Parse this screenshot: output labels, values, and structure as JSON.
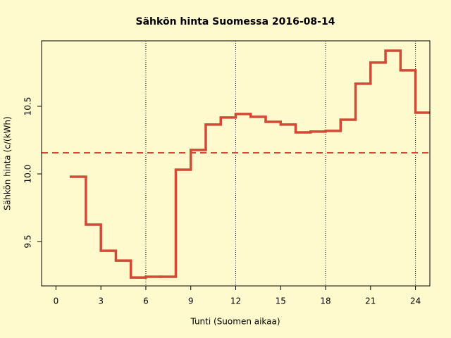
{
  "chart_data": {
    "type": "step",
    "title": "Sähkön hinta Suomessa 2016-08-14",
    "x_label": "Tunti (Suomen aikaa)",
    "y_label": "Sähkön hinta (c/(kWh)",
    "x": [
      1,
      2,
      3,
      4,
      5,
      6,
      7,
      8,
      9,
      10,
      11,
      12,
      13,
      14,
      15,
      16,
      17,
      18,
      19,
      20,
      21,
      22,
      23,
      24
    ],
    "series": [
      {
        "name": "Sähkön hinta",
        "color": "#d04a35",
        "values": [
          9.979,
          9.625,
          9.432,
          9.359,
          9.234,
          9.24,
          9.24,
          10.031,
          10.177,
          10.365,
          10.417,
          10.443,
          10.422,
          10.385,
          10.365,
          10.307,
          10.313,
          10.318,
          10.401,
          10.667,
          10.823,
          10.911,
          10.766,
          10.453
        ]
      }
    ],
    "mean_line": 10.156,
    "vlines": [
      6,
      12,
      18,
      24
    ],
    "xlim": [
      -0.96,
      24.96
    ],
    "ylim": [
      9.172,
      10.984
    ],
    "xticks": [
      0,
      3,
      6,
      9,
      12,
      15,
      18,
      21,
      24
    ],
    "yticks": [
      9.5,
      {
        "value": 10,
        "label": "10.0"
      },
      10.5
    ]
  }
}
